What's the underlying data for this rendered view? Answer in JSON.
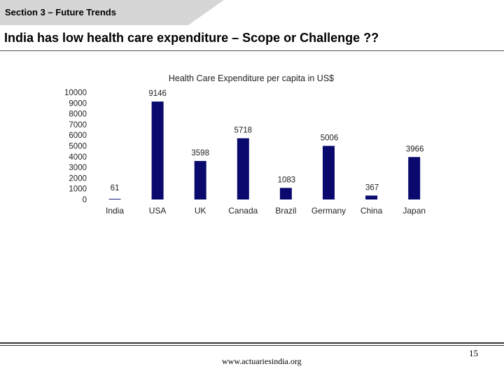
{
  "header": {
    "section_label": "Section 3 – Future Trends",
    "title": "India has low health care expenditure – Scope or Challenge ??"
  },
  "chart_data": {
    "type": "bar",
    "title": "Health Care Expenditure per capita in US$",
    "categories": [
      "India",
      "USA",
      "UK",
      "Canada",
      "Brazil",
      "Germany",
      "China",
      "Japan"
    ],
    "values": [
      61,
      9146,
      3598,
      5718,
      1083,
      5006,
      367,
      3966
    ],
    "ylim": [
      0,
      10000
    ],
    "yticks": [
      0,
      1000,
      2000,
      3000,
      4000,
      5000,
      6000,
      7000,
      8000,
      9000,
      10000
    ],
    "bar_color": "#0a0a6e",
    "grid": false,
    "legend": "none"
  },
  "footer": {
    "url": "www.actuariesindia.org",
    "page_number": "15"
  }
}
